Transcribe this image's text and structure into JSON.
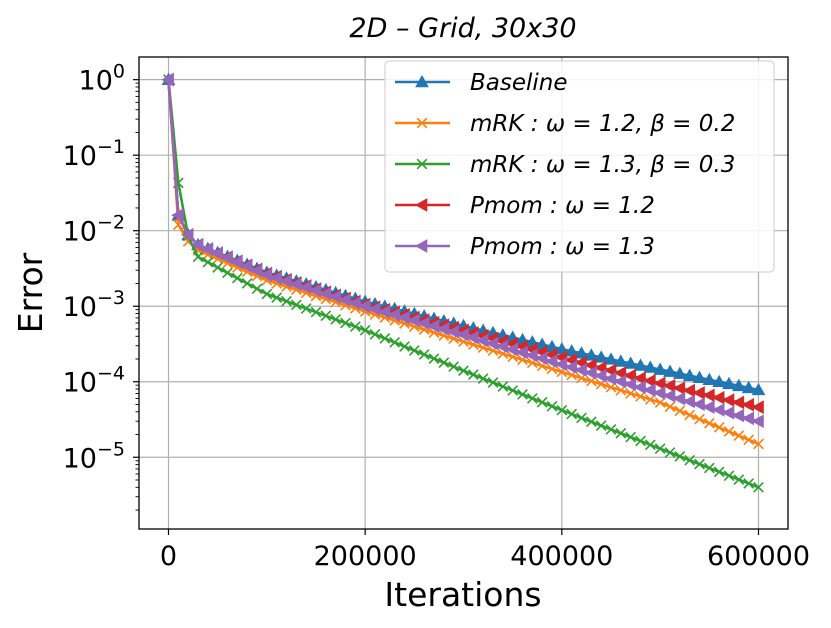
{
  "chart_data": {
    "type": "line",
    "title": "2D – Grid,    30x30",
    "xlabel": "Iterations",
    "ylabel": "Error",
    "xlim": [
      -30000,
      630000
    ],
    "ylim_log10": [
      -5.95,
      0.3
    ],
    "yscale": "log",
    "grid": true,
    "legend_position": "top-right",
    "x_ticks": [
      0,
      200000,
      400000,
      600000
    ],
    "x_tick_labels": [
      "0",
      "200000",
      "400000",
      "600000"
    ],
    "y_tick_exponents": [
      0,
      -1,
      -2,
      -3,
      -4,
      -5
    ],
    "y_tick_base": "10",
    "y_tick_exponent_labels": [
      "0",
      "−1",
      "−2",
      "−3",
      "−4",
      "−5"
    ],
    "series": [
      {
        "name": "Baseline",
        "legend_label": "Baseline",
        "color": "#1f77b4",
        "marker": "triangle-up",
        "points": [
          [
            0,
            1.0
          ],
          [
            10000,
            0.016
          ],
          [
            20000,
            0.0088
          ],
          [
            30000,
            0.0065
          ],
          [
            100000,
            0.0028
          ],
          [
            200000,
            0.00115
          ],
          [
            300000,
            0.00055
          ],
          [
            400000,
            0.00027
          ],
          [
            500000,
            0.000145
          ],
          [
            600000,
            7.8e-05
          ]
        ]
      },
      {
        "name": "mRK: ω = 1.2, β = 0.2",
        "legend_label": "mRK : ω = 1.2, β = 0.2",
        "color": "#ff7f0e",
        "marker": "x",
        "points": [
          [
            0,
            1.0
          ],
          [
            10000,
            0.012
          ],
          [
            20000,
            0.0072
          ],
          [
            30000,
            0.0055
          ],
          [
            100000,
            0.0022
          ],
          [
            200000,
            0.00085
          ],
          [
            300000,
            0.00034
          ],
          [
            400000,
            0.000135
          ],
          [
            500000,
            5.3e-05
          ],
          [
            600000,
            1.5e-05
          ]
        ]
      },
      {
        "name": "mRK: ω = 1.3, β = 0.3",
        "legend_label": "mRK : ω = 1.3, β = 0.3",
        "color": "#2ca02c",
        "marker": "x",
        "points": [
          [
            0,
            1.0
          ],
          [
            10000,
            0.043
          ],
          [
            20000,
            0.0085
          ],
          [
            30000,
            0.0045
          ],
          [
            100000,
            0.00145
          ],
          [
            200000,
            0.00048
          ],
          [
            300000,
            0.00014
          ],
          [
            400000,
            4.2e-05
          ],
          [
            500000,
            1.3e-05
          ],
          [
            600000,
            4e-06
          ]
        ]
      },
      {
        "name": "Pmom: ω = 1.2",
        "legend_label": "Pmom : ω = 1.2",
        "color": "#d62728",
        "marker": "triangle-left",
        "points": [
          [
            0,
            1.0
          ],
          [
            10000,
            0.016
          ],
          [
            20000,
            0.0088
          ],
          [
            30000,
            0.0065
          ],
          [
            100000,
            0.0027
          ],
          [
            200000,
            0.00105
          ],
          [
            300000,
            0.00048
          ],
          [
            400000,
            0.00021
          ],
          [
            500000,
            9.5e-05
          ],
          [
            600000,
            4.6e-05
          ]
        ]
      },
      {
        "name": "Pmom: ω = 1.3",
        "legend_label": "Pmom : ω = 1.3",
        "color": "#9467bd",
        "marker": "triangle-left",
        "points": [
          [
            0,
            1.0
          ],
          [
            10000,
            0.016
          ],
          [
            20000,
            0.0088
          ],
          [
            30000,
            0.0065
          ],
          [
            100000,
            0.0026
          ],
          [
            200000,
            0.001
          ],
          [
            300000,
            0.00042
          ],
          [
            400000,
            0.00017
          ],
          [
            500000,
            7.1e-05
          ],
          [
            600000,
            3e-05
          ]
        ]
      }
    ]
  }
}
